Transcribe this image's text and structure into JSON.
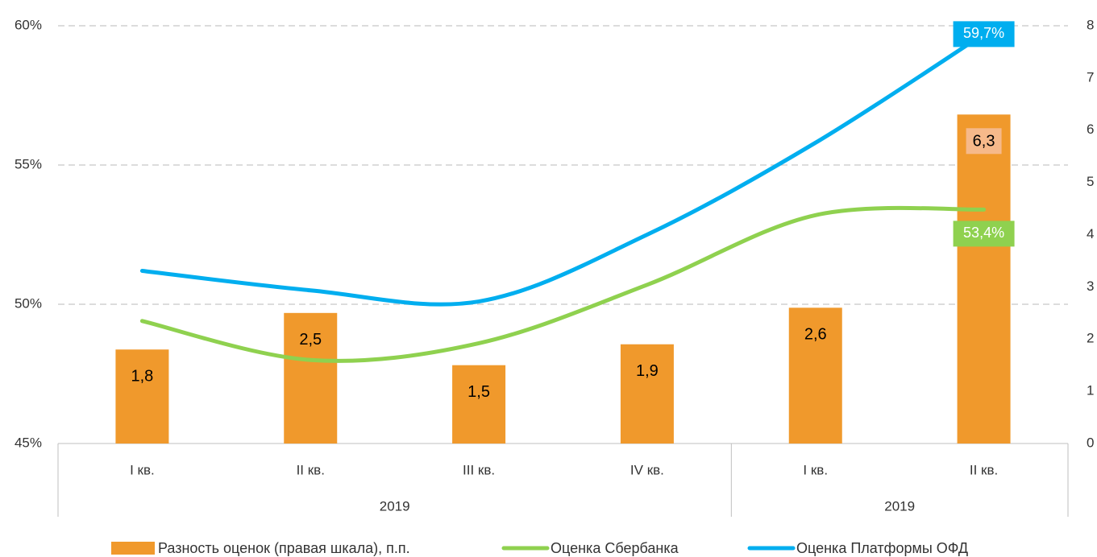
{
  "chart_data": {
    "type": "bar_line",
    "categories": [
      "I кв.",
      "II кв.",
      "III кв.",
      "IV кв.",
      "I кв.",
      "II кв."
    ],
    "groups": [
      {
        "label": "2019",
        "span": 4
      },
      {
        "label": "2019",
        "span": 2
      }
    ],
    "ylim": [
      45,
      60
    ],
    "yticks": [
      {
        "value": 45,
        "label": "45%"
      },
      {
        "value": 50,
        "label": "50%"
      },
      {
        "value": 55,
        "label": "55%"
      },
      {
        "value": 60,
        "label": "60%"
      }
    ],
    "y2lim": [
      0,
      8
    ],
    "y2ticks": [
      0,
      1,
      2,
      3,
      4,
      5,
      6,
      7,
      8
    ],
    "grid": true,
    "legend": "bottom",
    "series": [
      {
        "name": "Разность оценок (правая шкала), п.п.",
        "type": "bar",
        "axis": "y2",
        "color": "#f0992c",
        "values": [
          1.8,
          2.5,
          1.5,
          1.9,
          2.6,
          6.3
        ],
        "value_labels": [
          "1,8",
          "2,5",
          "1,5",
          "1,9",
          "2,6",
          "6,3"
        ]
      },
      {
        "name": "Оценка Сбербанка",
        "type": "line",
        "color": "#8fd14f",
        "values": [
          49.4,
          48.0,
          48.6,
          50.7,
          53.2,
          53.4
        ],
        "value_labels": [
          null,
          null,
          null,
          null,
          null,
          "53,4%"
        ]
      },
      {
        "name": "Оценка Платформы ОФД",
        "type": "line",
        "color": "#00aeef",
        "values": [
          51.2,
          50.5,
          50.1,
          52.5,
          55.8,
          59.7
        ],
        "value_labels": [
          null,
          null,
          null,
          null,
          null,
          "59,7%"
        ]
      }
    ]
  }
}
